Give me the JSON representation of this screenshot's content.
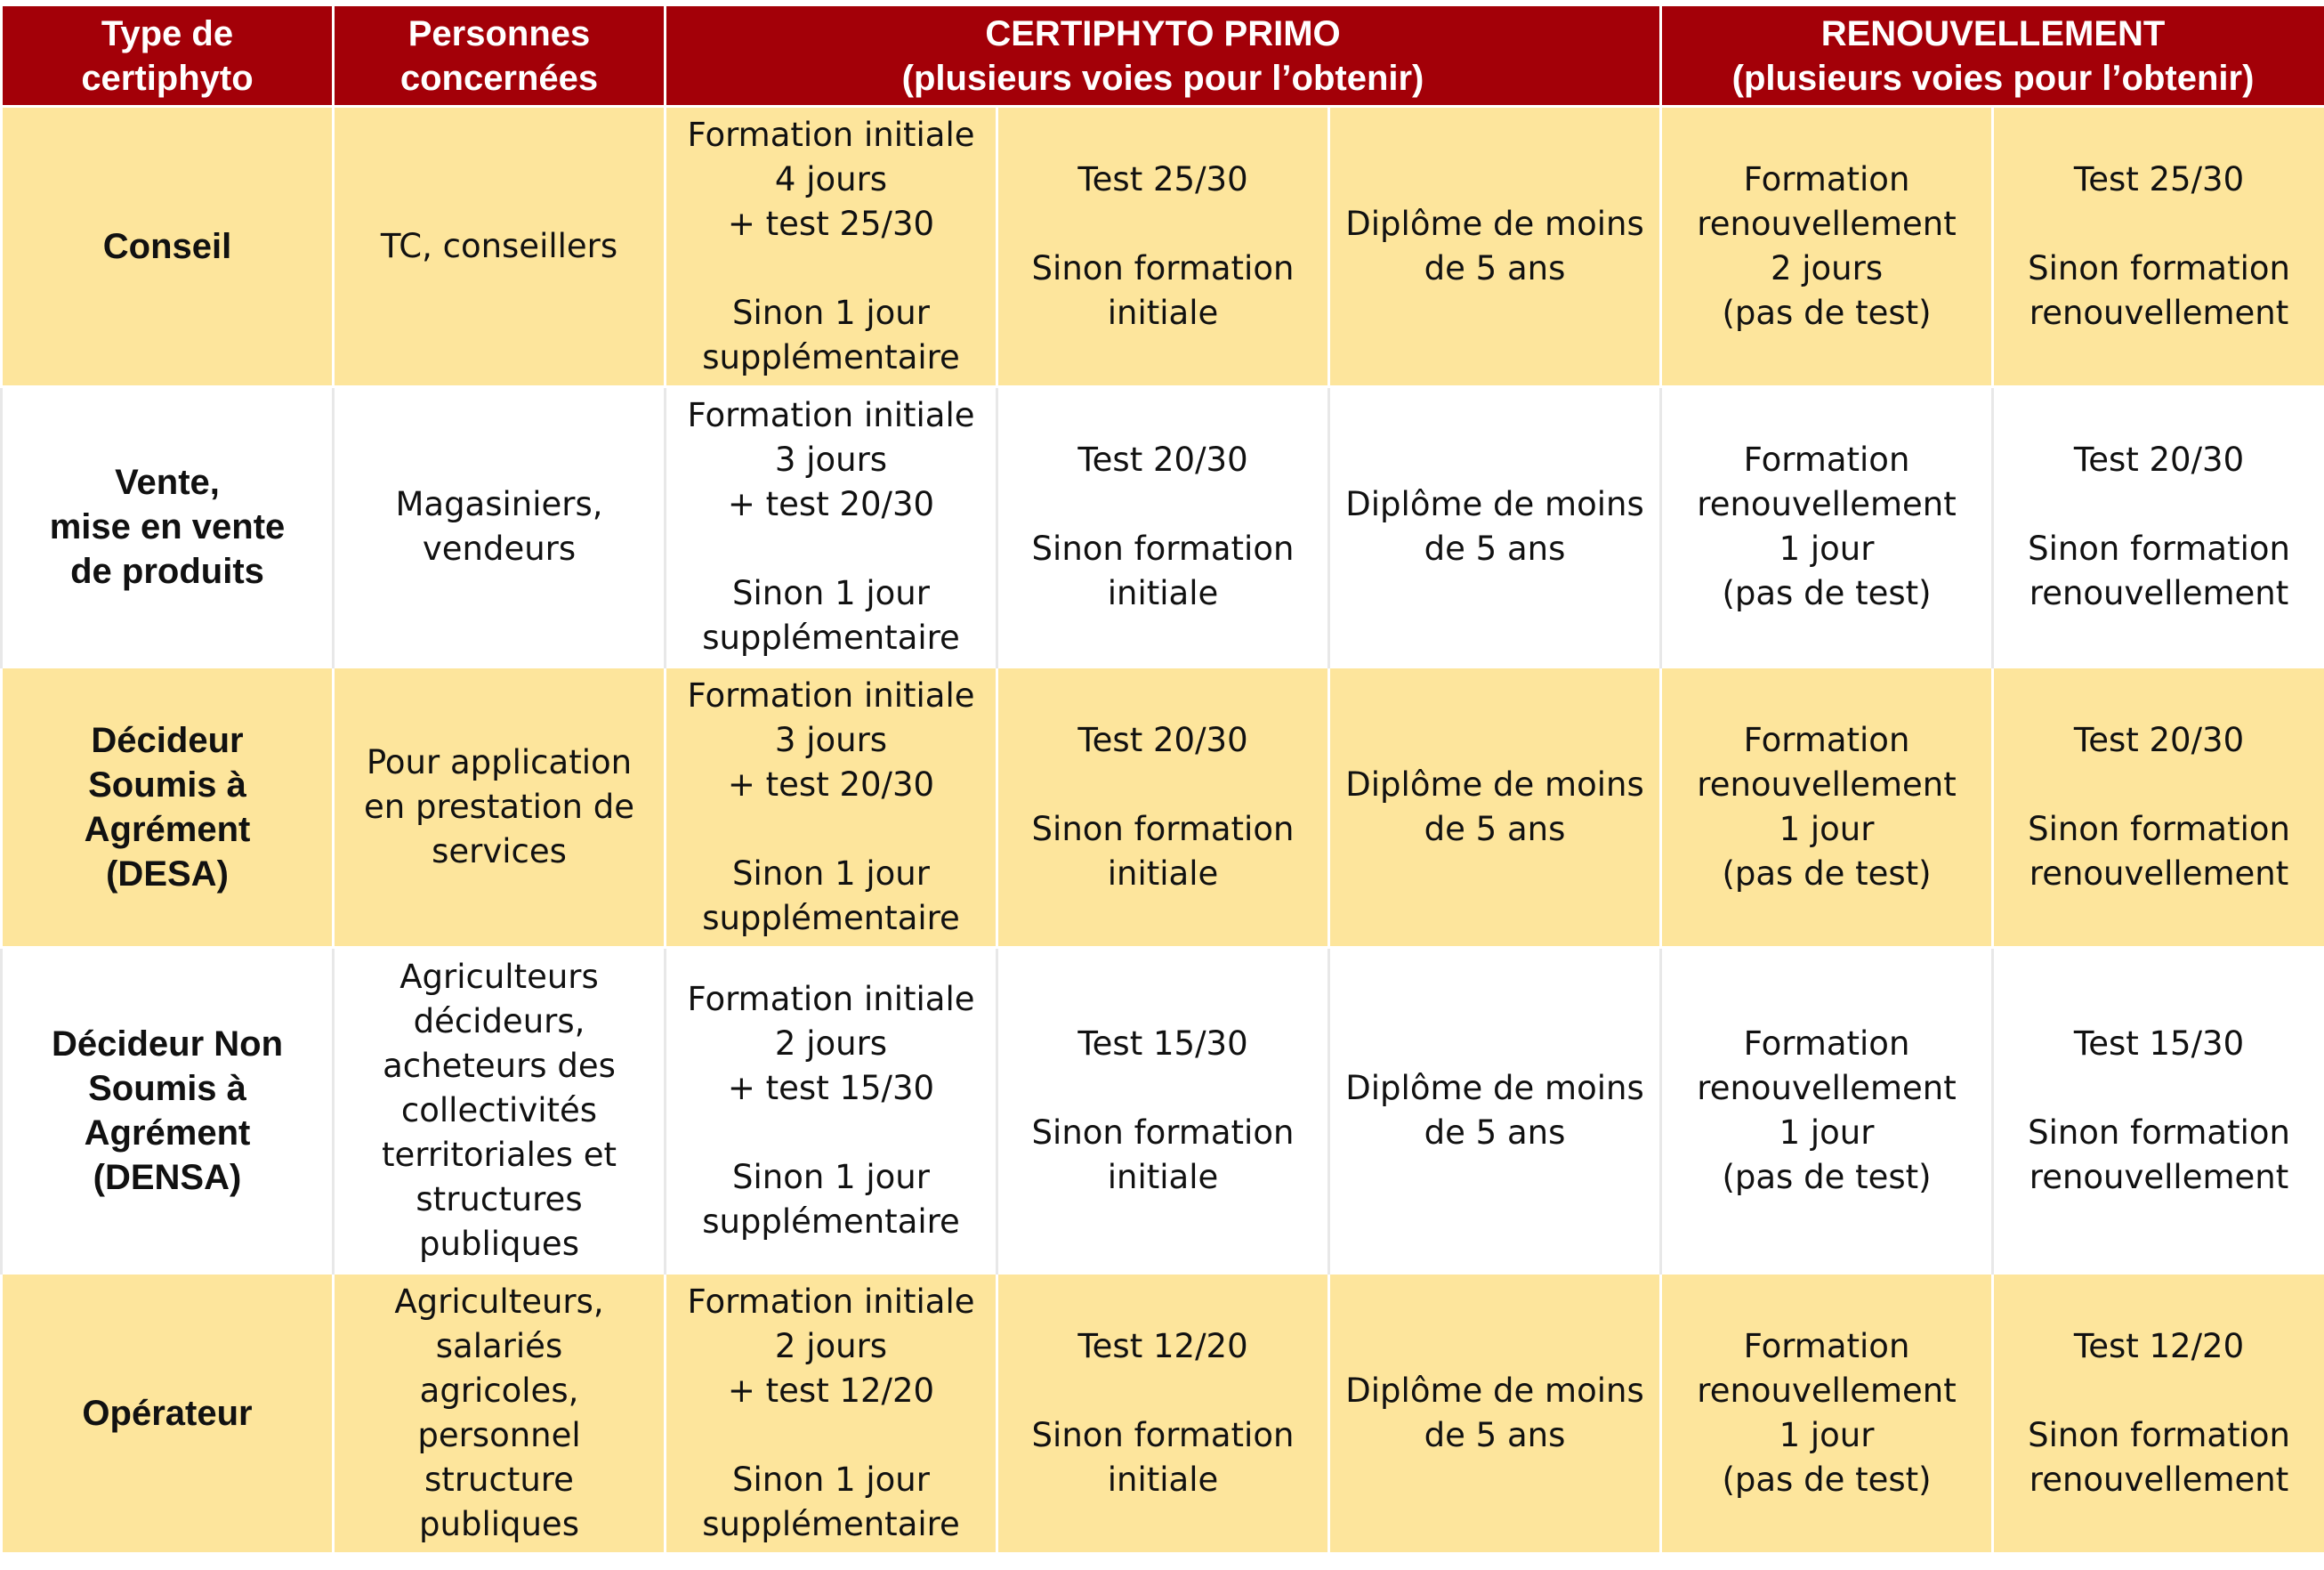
{
  "header": {
    "type_label": "Type de\ncertiphyto",
    "people_label": "Personnes\nconcernées",
    "primo_label": "CERTIPHYTO PRIMO\n(plusieurs voies pour l’obtenir)",
    "renew_label": "RENOUVELLEMENT\n(plusieurs voies pour l’obtenir)"
  },
  "colors": {
    "header_bg": "#a30008",
    "band_yellow": "#fde59c",
    "band_white": "#ffffff"
  },
  "rows": [
    {
      "type": "Conseil",
      "people": "TC, conseillers",
      "primo_formation": "Formation initiale\n4 jours\n+ test 25/30\n\nSinon 1 jour\nsupplémentaire",
      "primo_test": "Test 25/30\n\nSinon formation\ninitiale",
      "primo_diplome": "Diplôme de moins\nde 5 ans",
      "renew_formation": "Formation\nrenouvellement\n2 jours\n(pas de test)",
      "renew_test": "Test 25/30\n\nSinon formation\nrenouvellement"
    },
    {
      "type": "Vente,\nmise en vente\nde produits",
      "people": "Magasiniers,\nvendeurs",
      "primo_formation": "Formation initiale\n3 jours\n+ test 20/30\n\nSinon 1 jour\nsupplémentaire",
      "primo_test": "Test 20/30\n\nSinon formation\ninitiale",
      "primo_diplome": "Diplôme de moins\nde 5 ans",
      "renew_formation": "Formation\nrenouvellement\n1 jour\n(pas de test)",
      "renew_test": "Test 20/30\n\nSinon formation\nrenouvellement"
    },
    {
      "type": "Décideur\nSoumis à\nAgrément\n(DESA)",
      "people": "Pour application\nen prestation de\nservices",
      "primo_formation": "Formation initiale\n3 jours\n+ test 20/30\n\nSinon 1 jour\nsupplémentaire",
      "primo_test": "Test 20/30\n\nSinon formation\ninitiale",
      "primo_diplome": "Diplôme de moins\nde 5 ans",
      "renew_formation": "Formation\nrenouvellement\n1 jour\n(pas de test)",
      "renew_test": "Test 20/30\n\nSinon formation\nrenouvellement"
    },
    {
      "type": "Décideur Non\nSoumis à\nAgrément\n(DENSA)",
      "people": "Agriculteurs\ndécideurs,\nacheteurs des\ncollectivités\nterritoriales et\nstructures\npubliques",
      "primo_formation": "Formation initiale\n2 jours\n+ test 15/30\n\nSinon 1 jour\nsupplémentaire",
      "primo_test": "Test 15/30\n\nSinon formation\ninitiale",
      "primo_diplome": "Diplôme de moins\nde 5 ans",
      "renew_formation": "Formation\nrenouvellement\n1 jour\n(pas de test)",
      "renew_test": "Test 15/30\n\nSinon formation\nrenouvellement"
    },
    {
      "type": "Opérateur",
      "people": "Agriculteurs,\nsalariés\nagricoles,\npersonnel\nstructure\npubliques",
      "primo_formation": "Formation initiale\n2 jours\n+ test 12/20\n\nSinon 1 jour\nsupplémentaire",
      "primo_test": "Test 12/20\n\nSinon formation\ninitiale",
      "primo_diplome": "Diplôme de moins\nde 5 ans",
      "renew_formation": "Formation\nrenouvellement\n1 jour\n(pas de test)",
      "renew_test": "Test 12/20\n\nSinon formation\nrenouvellement"
    }
  ]
}
